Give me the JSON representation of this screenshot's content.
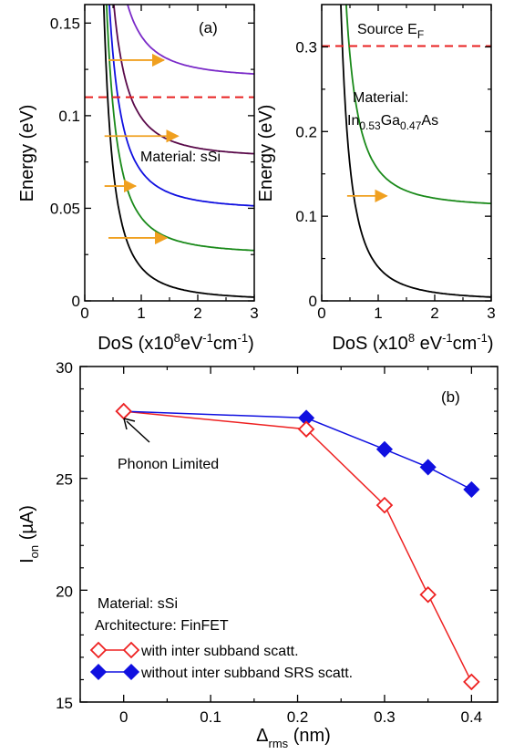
{
  "colors": {
    "black": "#000000",
    "green": "#1a8a1a",
    "blue": "#1010e0",
    "dark_purple": "#5a0a4a",
    "purple": "#7a2ac8",
    "orange": "#f0a020",
    "dashed_red": "#e82020",
    "series_red": "#ee2222",
    "series_blue": "#1010e0"
  },
  "chart_data": [
    {
      "type": "line",
      "panel_label": "(a)",
      "xlabel": "DoS (x10",
      "xlabel_sup1": "8",
      "xlabel_mid": "eV",
      "xlabel_sup2": "-1",
      "xlabel_mid2": "cm",
      "xlabel_sup3": "-1",
      "xlabel_end": ")",
      "ylabel": "Energy (eV)",
      "xlim": [
        0,
        3
      ],
      "ylim": [
        0,
        0.16
      ],
      "x_ticks": [
        "0",
        "1",
        "2",
        "3"
      ],
      "y_ticks": [
        "0",
        "0.05",
        "0.1",
        "0.15"
      ],
      "y_tick_values": [
        0,
        0.05,
        0.1,
        0.15
      ],
      "material_label": "Material: sSi",
      "fermi_level": 0.11,
      "series": [
        {
          "color": "black",
          "band_edge": 0.0,
          "coeff": 0.018
        },
        {
          "color": "green",
          "band_edge": 0.025,
          "coeff": 0.02
        },
        {
          "color": "blue",
          "band_edge": 0.049,
          "coeff": 0.021
        },
        {
          "color": "dark_purple",
          "band_edge": 0.077,
          "coeff": 0.022
        },
        {
          "color": "purple",
          "band_edge": 0.12,
          "coeff": 0.023
        }
      ],
      "transitions": [
        {
          "x_start": 0.42,
          "x_end": 1.45,
          "y": 0.034
        },
        {
          "x_start": 0.35,
          "x_end": 0.9,
          "y": 0.062
        },
        {
          "x_start": 0.35,
          "x_end": 1.65,
          "y": 0.089
        },
        {
          "x_start": 0.42,
          "x_end": 1.4,
          "y": 0.13
        }
      ]
    },
    {
      "type": "line",
      "xlabel": "DoS (x10",
      "xlabel_sup1": "8",
      "xlabel_mid": " eV",
      "xlabel_sup2": "-1",
      "xlabel_mid2": "cm",
      "xlabel_sup3": "-1",
      "xlabel_end": ")",
      "xlim": [
        0,
        3
      ],
      "ylim": [
        0,
        0.35
      ],
      "x_ticks": [
        "0",
        "1",
        "2",
        "3"
      ],
      "y_ticks": [
        "0",
        "0.1",
        "0.2",
        "0.3"
      ],
      "y_tick_values": [
        0,
        0.1,
        0.2,
        0.3
      ],
      "fermi_label": "Source E",
      "fermi_sub": "F",
      "fermi_level": 0.301,
      "material_line1": "Material:",
      "material_in": "In",
      "material_sub1": "0.53",
      "material_ga": "Ga",
      "material_sub2": "0.47",
      "material_as": "As",
      "series": [
        {
          "color": "black",
          "band_edge": 0.0,
          "coeff": 0.04
        },
        {
          "color": "green",
          "band_edge": 0.11,
          "coeff": 0.045
        }
      ],
      "transitions": [
        {
          "x_start": 0.45,
          "x_end": 1.15,
          "y": 0.124
        }
      ]
    },
    {
      "type": "line",
      "panel_label": "(b)",
      "xlabel": "Δ",
      "xlabel_sub": "rms",
      "xlabel_unit": " (nm)",
      "ylabel": "I",
      "ylabel_sub": "on",
      "ylabel_unit": " (µA)",
      "xlim": [
        -0.05,
        0.43
      ],
      "ylim": [
        15,
        30
      ],
      "x_ticks": [
        "0",
        "0.1",
        "0.2",
        "0.3",
        "0.4"
      ],
      "x_tick_values": [
        0,
        0.1,
        0.2,
        0.3,
        0.4
      ],
      "y_ticks": [
        "15",
        "20",
        "25",
        "30"
      ],
      "y_tick_values": [
        15,
        20,
        25,
        30
      ],
      "annotation": "Phonon Limited",
      "info_line1": "Material: sSi",
      "info_line2": "Architecture: FinFET",
      "series": [
        {
          "name": "with inter subband scatt.",
          "marker": "open-diamond",
          "color": "series_red",
          "x": [
            0,
            0.21,
            0.3,
            0.35,
            0.4
          ],
          "y": [
            28.0,
            27.2,
            23.8,
            19.8,
            15.9
          ]
        },
        {
          "name": "without inter subband SRS scatt.",
          "marker": "filled-diamond",
          "color": "series_blue",
          "x": [
            0,
            0.21,
            0.3,
            0.35,
            0.4
          ],
          "y": [
            28.0,
            27.7,
            26.3,
            25.5,
            24.5
          ]
        }
      ]
    }
  ]
}
